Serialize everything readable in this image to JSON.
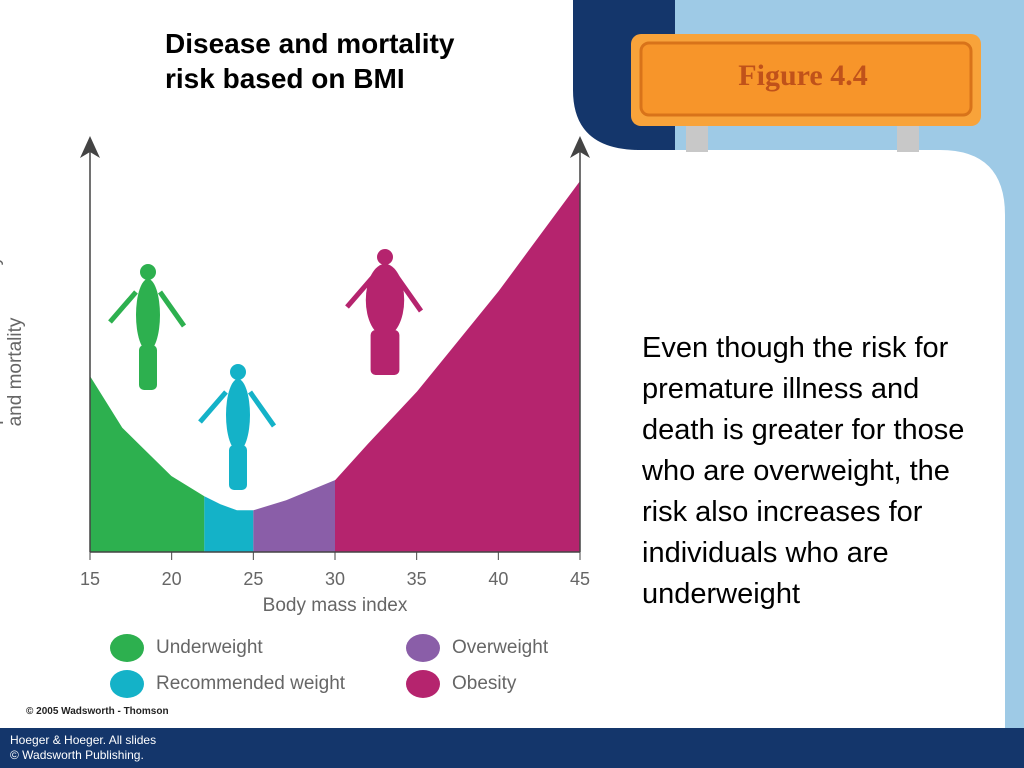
{
  "slide": {
    "title": "Disease and mortality risk based on BMI",
    "badge": "Figure 4.4",
    "body": "Even though the risk for premature illness and death is greater for those who are overweight, the risk also increases for individuals who are underweight",
    "copyright": "© 2005 Wadsworth - Thomson",
    "footer": [
      "Hoeger & Hoeger. All slides",
      "© Wadsworth Publishing."
    ]
  },
  "chart_data": {
    "type": "area",
    "xlabel": "Body mass index",
    "ylabel": "Risk of premature morbidity and mortality",
    "x": [
      15,
      17,
      18,
      20,
      22,
      23,
      24,
      25,
      27,
      30,
      32,
      35,
      37,
      40,
      42,
      45
    ],
    "values": [
      44,
      31,
      27,
      19,
      14,
      12,
      10.5,
      10.5,
      13,
      18,
      27,
      40,
      50,
      65,
      76,
      92.5
    ],
    "xlim": [
      15,
      45
    ],
    "xticks": [
      15,
      20,
      25,
      30,
      35,
      40,
      45
    ],
    "ylim": [
      0,
      100
    ],
    "series": [
      {
        "name": "Underweight",
        "color": "#2db04f",
        "range": [
          15,
          22
        ]
      },
      {
        "name": "Recommended weight",
        "color": "#14b2c8",
        "range": [
          22,
          25
        ]
      },
      {
        "name": "Overweight",
        "color": "#8a5ea8",
        "range": [
          25,
          30
        ]
      },
      {
        "name": "Obesity",
        "color": "#b5246e",
        "range": [
          30,
          45
        ]
      }
    ]
  }
}
